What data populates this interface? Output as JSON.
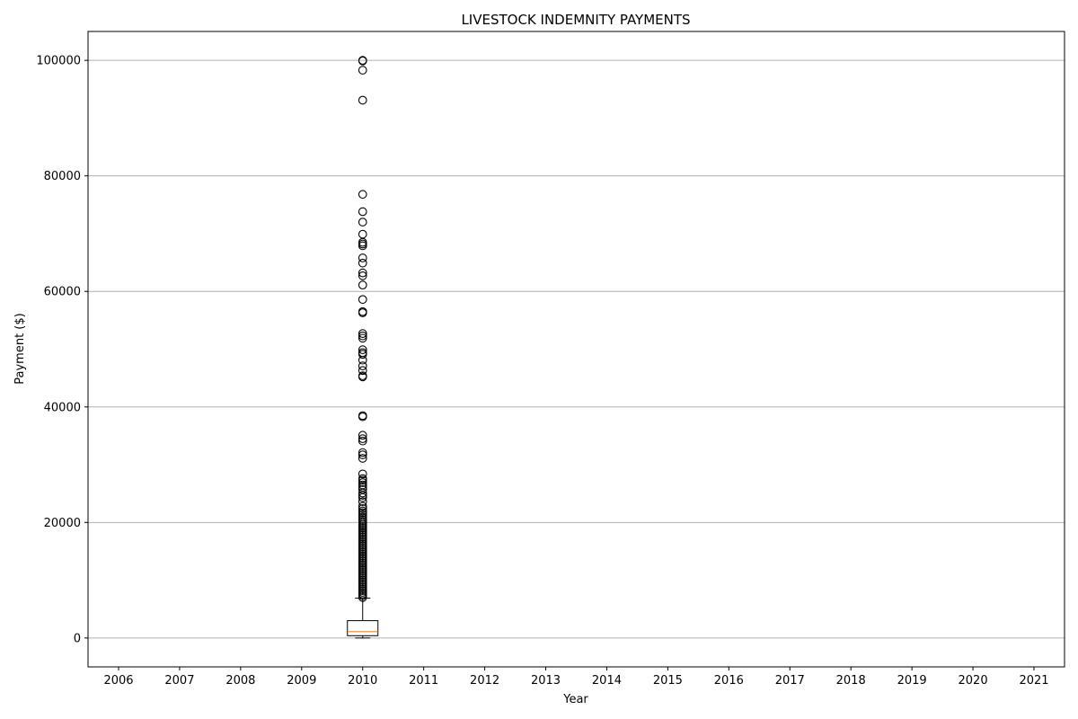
{
  "chart_data": {
    "type": "box",
    "title": "LIVESTOCK INDEMNITY PAYMENTS",
    "xlabel": "Year",
    "ylabel": "Payment ($)",
    "categories": [
      "2006",
      "2007",
      "2008",
      "2009",
      "2010",
      "2011",
      "2012",
      "2013",
      "2014",
      "2015",
      "2016",
      "2017",
      "2018",
      "2019",
      "2020",
      "2021"
    ],
    "ylim": [
      -5000,
      105000
    ],
    "yticks": [
      0,
      20000,
      40000,
      60000,
      80000,
      100000
    ],
    "y_grid": true,
    "x_grid": false,
    "boxes": [
      {
        "category": "2010",
        "whisker_low": 0,
        "q1": 400,
        "median": 1100,
        "q3": 3000,
        "whisker_high": 6900,
        "outliers": [
          100000,
          99900,
          98300,
          93100,
          76800,
          73800,
          72000,
          69900,
          68500,
          68200,
          67900,
          65800,
          64900,
          63200,
          62700,
          61100,
          58600,
          56500,
          56300,
          52700,
          52300,
          51900,
          49900,
          49400,
          49100,
          48100,
          47100,
          46300,
          45400,
          45200,
          38500,
          38300,
          35100,
          34500,
          34100,
          32100,
          31700,
          31100,
          28400,
          27600,
          27300,
          26900,
          26500,
          26100,
          25700,
          25100,
          24700,
          24300,
          23600,
          22800,
          22400,
          22000,
          21700,
          21300,
          20900,
          20500,
          20200,
          19900,
          19600,
          19300,
          19000,
          18700,
          18400,
          18100,
          17800,
          17500,
          17200,
          16900,
          16600,
          16300,
          16000,
          15700,
          15400,
          15100,
          14800,
          14500,
          14200,
          13900,
          13600,
          13300,
          13000,
          12700,
          12400,
          12100,
          11800,
          11500,
          11200,
          10900,
          10600,
          10300,
          10000,
          9700,
          9400,
          9100,
          8800,
          8500,
          8200,
          7900,
          7600,
          7300,
          7000
        ]
      }
    ],
    "colors": {
      "median": "#ff7f0e",
      "box": "#000000",
      "grid": "#b0b0b0"
    }
  }
}
